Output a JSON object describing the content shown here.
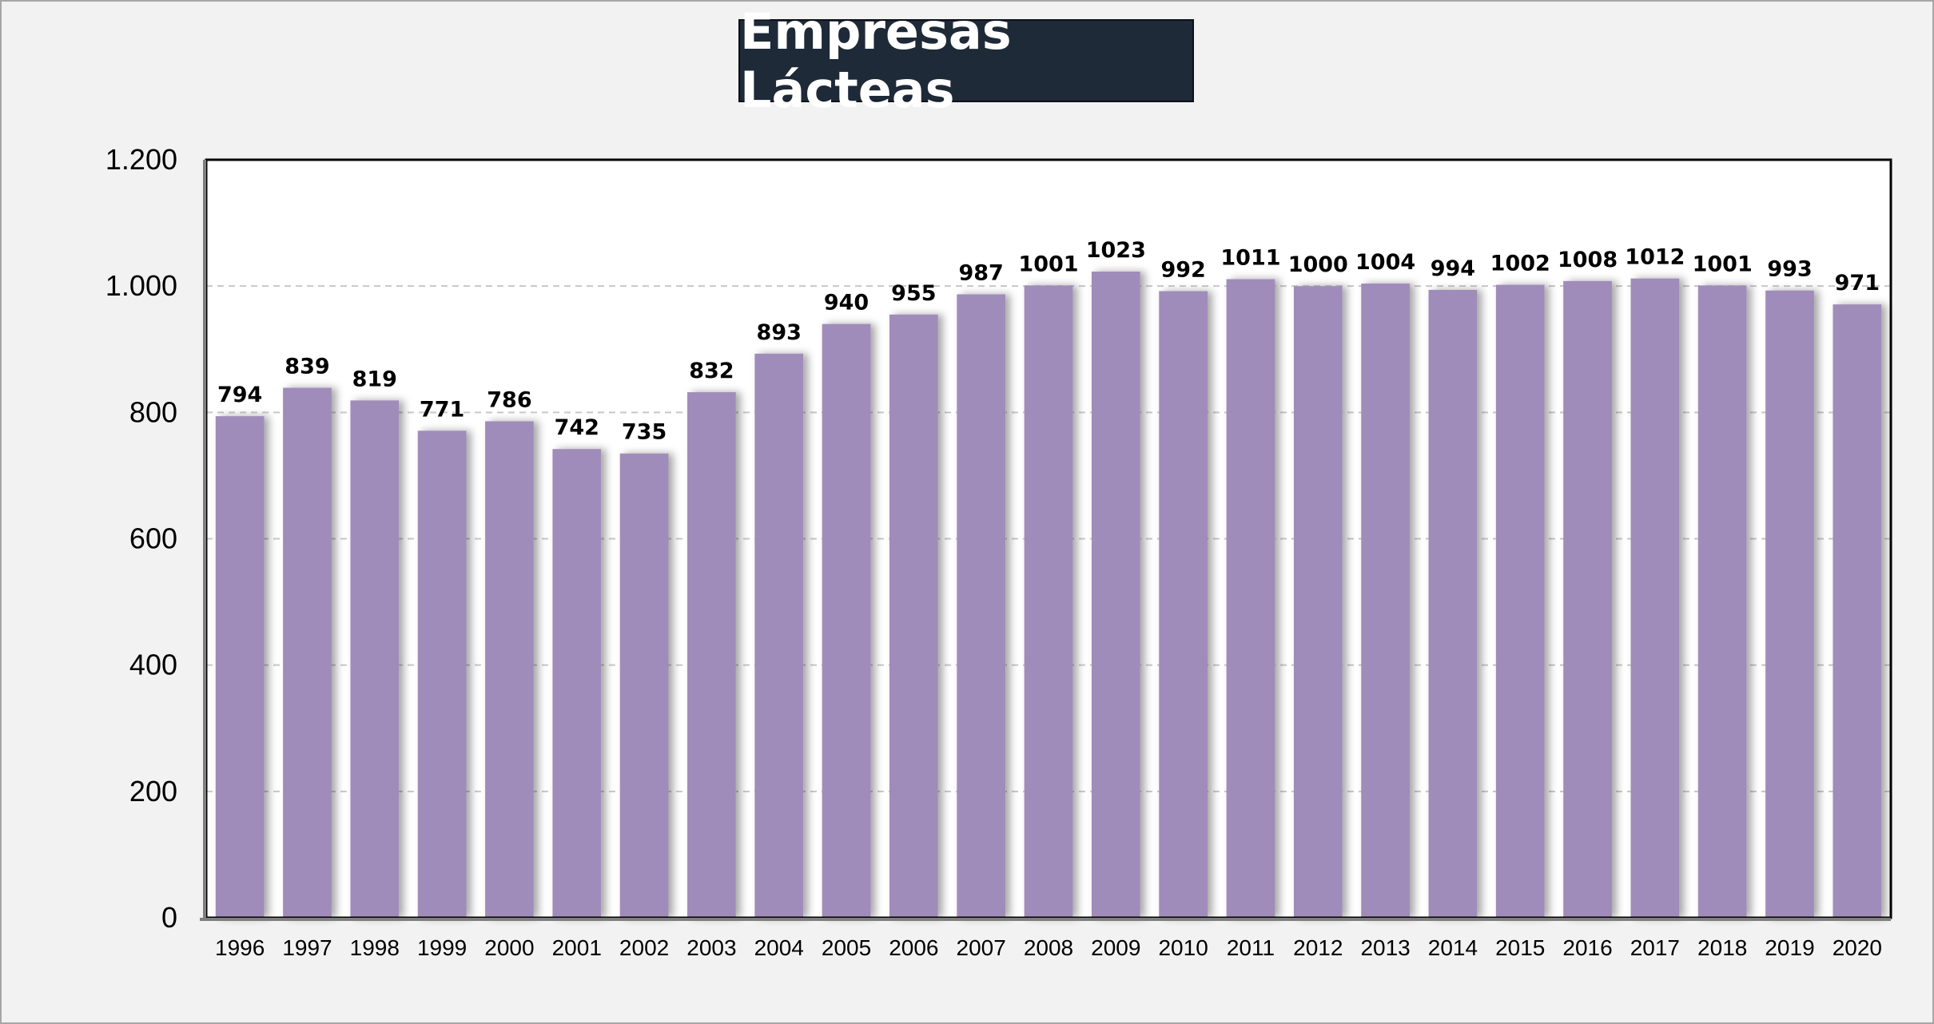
{
  "colors": {
    "bar": "#a08cba",
    "title_bg": "#1f2a38",
    "title_text": "#ffffff",
    "page_bg": "#f2f2f2",
    "plot_bg": "#ffffff",
    "grid": "#c8c8c8"
  },
  "chart_data": {
    "type": "bar",
    "title": "Empresas Lácteas",
    "xlabel": "",
    "ylabel": "",
    "ylim": [
      0,
      1200
    ],
    "yticks": [
      0,
      200,
      400,
      600,
      800,
      1000,
      1200
    ],
    "ytick_labels": [
      "0",
      "200",
      "400",
      "600",
      "800",
      "1.000",
      "1.200"
    ],
    "grid": "horizontal dashed",
    "legend": "none",
    "categories": [
      "1996",
      "1997",
      "1998",
      "1999",
      "2000",
      "2001",
      "2002",
      "2003",
      "2004",
      "2005",
      "2006",
      "2007",
      "2008",
      "2009",
      "2010",
      "2011",
      "2012",
      "2013",
      "2014",
      "2015",
      "2016",
      "2017",
      "2018",
      "2019",
      "2020"
    ],
    "values": [
      794,
      839,
      819,
      771,
      786,
      742,
      735,
      832,
      893,
      940,
      955,
      987,
      1001,
      1023,
      992,
      1011,
      1000,
      1004,
      994,
      1002,
      1008,
      1012,
      1001,
      993,
      971
    ]
  }
}
